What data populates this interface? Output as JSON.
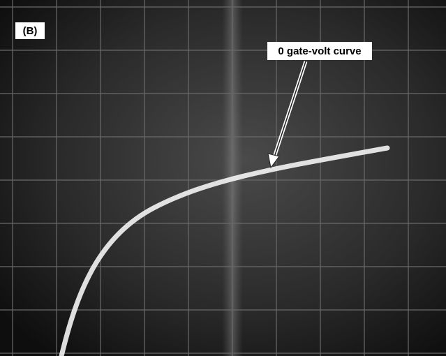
{
  "panel_label": "(B)",
  "annotation": "0 gate-volt curve"
}
